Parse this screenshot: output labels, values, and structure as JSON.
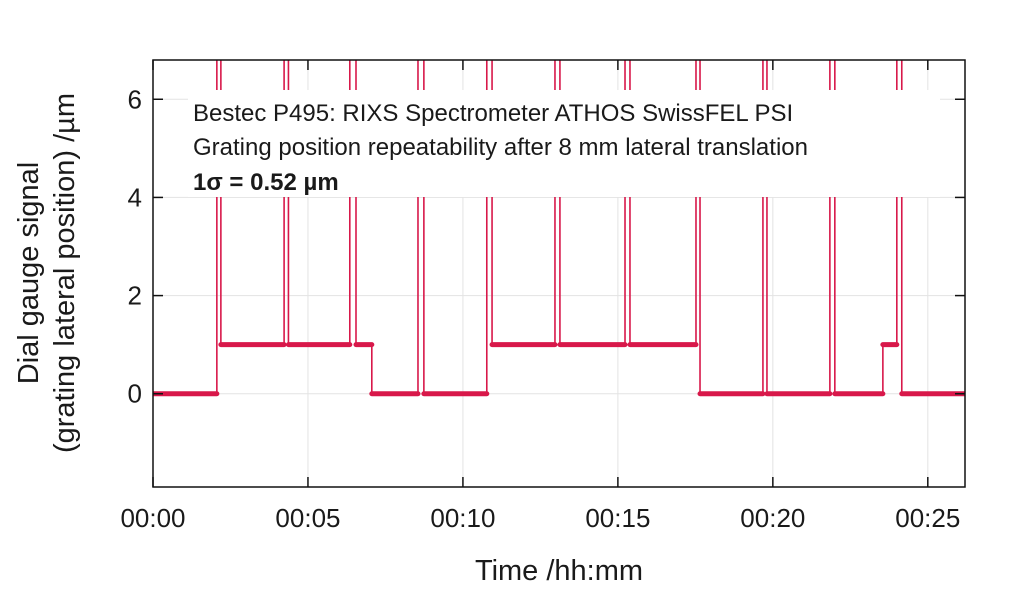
{
  "chart_data": {
    "type": "line",
    "title": "",
    "xlabel": "Time /hh:mm",
    "ylabel_lines": [
      "Dial gauge signal",
      "(grating lateral position) /µm"
    ],
    "xlim": [
      0,
      26.2
    ],
    "ylim": [
      -1.9,
      6.8
    ],
    "x_ticks": [
      0,
      5,
      10,
      15,
      20,
      25
    ],
    "x_tick_labels": [
      "00:00",
      "00:05",
      "00:10",
      "00:15",
      "00:20",
      "00:25"
    ],
    "y_ticks": [
      0,
      2,
      4,
      6
    ],
    "y_tick_labels": [
      "0",
      "2",
      "4",
      "6"
    ],
    "grid": true,
    "annotation": {
      "lines": [
        "Bestec P495: RIXS Spectrometer ATHOS SwissFEL PSI",
        "Grating position repeatability after 8 mm  lateral translation"
      ],
      "sigma": "1σ = 0.52 µm"
    },
    "series": [
      {
        "name": "Dial gauge signal",
        "color": "#d8184a",
        "x_unit": "minutes",
        "points": [
          [
            0,
            0
          ],
          [
            2.06,
            0
          ],
          [
            2.06,
            7
          ],
          [
            2.19,
            7
          ],
          [
            2.19,
            1
          ],
          [
            4.23,
            1
          ],
          [
            4.23,
            7
          ],
          [
            4.37,
            7
          ],
          [
            4.37,
            1
          ],
          [
            6.35,
            1
          ],
          [
            6.35,
            7
          ],
          [
            6.55,
            7
          ],
          [
            6.55,
            1
          ],
          [
            7.06,
            1
          ],
          [
            7.06,
            0
          ],
          [
            8.55,
            0
          ],
          [
            8.55,
            7
          ],
          [
            8.74,
            7
          ],
          [
            8.74,
            0
          ],
          [
            10.77,
            0
          ],
          [
            10.77,
            7
          ],
          [
            10.94,
            7
          ],
          [
            10.94,
            1
          ],
          [
            12.97,
            1
          ],
          [
            12.97,
            7
          ],
          [
            13.13,
            7
          ],
          [
            13.13,
            1
          ],
          [
            15.23,
            1
          ],
          [
            15.23,
            7
          ],
          [
            15.39,
            7
          ],
          [
            15.39,
            1
          ],
          [
            17.52,
            1
          ],
          [
            17.52,
            7
          ],
          [
            17.65,
            7
          ],
          [
            17.65,
            0
          ],
          [
            19.68,
            0
          ],
          [
            19.68,
            7
          ],
          [
            19.81,
            7
          ],
          [
            19.81,
            0
          ],
          [
            21.84,
            0
          ],
          [
            21.84,
            7
          ],
          [
            22.0,
            7
          ],
          [
            22.0,
            0
          ],
          [
            23.55,
            0
          ],
          [
            23.55,
            1
          ],
          [
            24.0,
            1
          ],
          [
            24.0,
            7
          ],
          [
            24.16,
            7
          ],
          [
            24.16,
            0
          ],
          [
            26.19,
            0
          ]
        ]
      }
    ]
  }
}
